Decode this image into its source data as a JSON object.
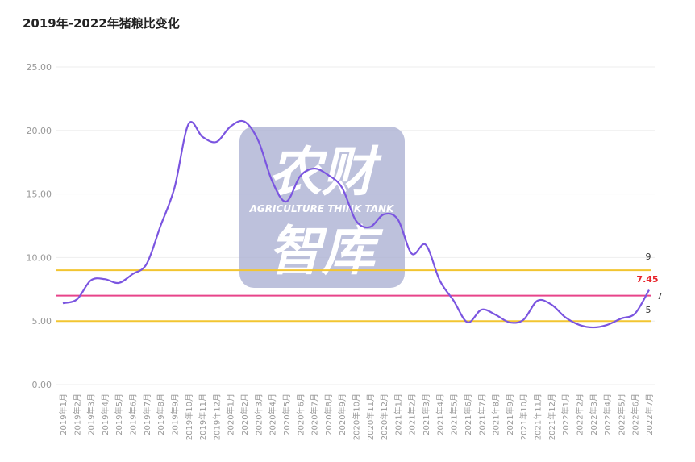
{
  "title": "2019年-2022年猪粮比变化",
  "watermark": {
    "line1": "农财",
    "line2": "AGRICULTURE  THINK TANK",
    "line3": "智库"
  },
  "colors": {
    "series": "#7b55e0",
    "ref_upper": "#f2c531",
    "ref_lower": "#f2c531",
    "ref_mid": "#e8448a",
    "latest_label": "#e8242b",
    "grid": "#eeeeee",
    "watermark_bg": "#aab0d2"
  },
  "chart_data": {
    "type": "line",
    "title": "2019年-2022年猪粮比变化",
    "xlabel": "",
    "ylabel": "",
    "ylim": [
      0,
      25
    ],
    "yticks": [
      "0.00",
      "5.00",
      "10.00",
      "15.00",
      "20.00",
      "25.00"
    ],
    "ytick_values": [
      0,
      5,
      10,
      15,
      20,
      25
    ],
    "categories": [
      "2019年1月",
      "2019年2月",
      "2019年3月",
      "2019年4月",
      "2019年5月",
      "2019年6月",
      "2019年7月",
      "2019年8月",
      "2019年9月",
      "2019年10月",
      "2019年11月",
      "2019年12月",
      "2020年1月",
      "2020年2月",
      "2020年3月",
      "2020年4月",
      "2020年5月",
      "2020年6月",
      "2020年7月",
      "2020年8月",
      "2020年9月",
      "2020年10月",
      "2020年11月",
      "2020年12月",
      "2021年1月",
      "2021年2月",
      "2021年3月",
      "2021年4月",
      "2021年5月",
      "2021年6月",
      "2021年7月",
      "2021年8月",
      "2021年9月",
      "2021年10月",
      "2021年11月",
      "2021年12月",
      "2022年1月",
      "2022年2月",
      "2022年3月",
      "2022年4月",
      "2022年5月",
      "2022年6月",
      "2022年7月"
    ],
    "values": [
      6.4,
      6.7,
      8.2,
      8.3,
      8.0,
      8.7,
      9.5,
      12.5,
      15.5,
      20.5,
      19.5,
      19.1,
      20.3,
      20.7,
      19.2,
      16.0,
      14.4,
      16.4,
      17.0,
      16.5,
      15.5,
      12.9,
      12.4,
      13.4,
      13.0,
      10.3,
      11.0,
      8.2,
      6.6,
      4.9,
      5.9,
      5.5,
      4.9,
      5.1,
      6.6,
      6.3,
      5.3,
      4.7,
      4.5,
      4.7,
      5.2,
      5.6,
      7.45
    ],
    "reference_lines": [
      {
        "value": 9,
        "label": "9",
        "color": "#f2c531"
      },
      {
        "value": 7,
        "label": "7",
        "color": "#e8448a"
      },
      {
        "value": 5,
        "label": "5",
        "color": "#f2c531"
      }
    ],
    "latest_label": "7.45",
    "grid": true,
    "legend": "none"
  }
}
